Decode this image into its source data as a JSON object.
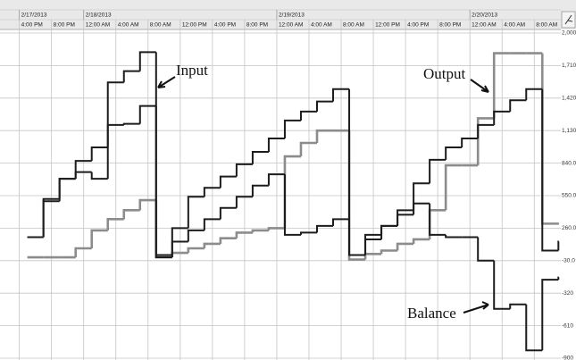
{
  "chart_data": {
    "type": "line",
    "drawstyle": "steps-post",
    "grid": true,
    "x": [
      1,
      3,
      5,
      7,
      9,
      11,
      13,
      15,
      17,
      19,
      21,
      23,
      25,
      27,
      29,
      31,
      33,
      35,
      37,
      39,
      41,
      43,
      45,
      47,
      49,
      51,
      53,
      55,
      57,
      59,
      61,
      63,
      65,
      67
    ],
    "xlim": [
      -2.4,
      67.3
    ],
    "xticks": [
      {
        "value": 0,
        "label": "4:00 PM"
      },
      {
        "value": 4,
        "label": "8:00 PM"
      },
      {
        "value": 8,
        "label": "12:00 AM"
      },
      {
        "value": 12,
        "label": "4:00 AM"
      },
      {
        "value": 16,
        "label": "8:00 AM"
      },
      {
        "value": 20,
        "label": "12:00 PM"
      },
      {
        "value": 24,
        "label": "4:00 PM"
      },
      {
        "value": 28,
        "label": "8:00 PM"
      },
      {
        "value": 32,
        "label": "12:00 AM"
      },
      {
        "value": 36,
        "label": "4:00 AM"
      },
      {
        "value": 40,
        "label": "8:00 AM"
      },
      {
        "value": 44,
        "label": "12:00 PM"
      },
      {
        "value": 48,
        "label": "4:00 PM"
      },
      {
        "value": 52,
        "label": "8:00 PM"
      },
      {
        "value": 56,
        "label": "12:00 AM"
      },
      {
        "value": 60,
        "label": "4:00 AM"
      },
      {
        "value": 64,
        "label": "8:00 AM"
      }
    ],
    "date_ticks": [
      {
        "value": 0,
        "label": "2/17/2013"
      },
      {
        "value": 8,
        "label": "2/18/2013"
      },
      {
        "value": 32,
        "label": "2/19/2013"
      },
      {
        "value": 56,
        "label": "2/20/2013"
      }
    ],
    "ylim": [
      -900,
      2000
    ],
    "yticks": [
      {
        "value": 2000,
        "label": "2,000"
      },
      {
        "value": 1710,
        "label": "1,710"
      },
      {
        "value": 1420,
        "label": "1,420"
      },
      {
        "value": 1130,
        "label": "1,130"
      },
      {
        "value": 840,
        "label": "840.0"
      },
      {
        "value": 550,
        "label": "550.0"
      },
      {
        "value": 260,
        "label": "260.0"
      },
      {
        "value": -30,
        "label": "-30.0"
      },
      -320,
      -610,
      -900
    ],
    "series": [
      {
        "name": "Input",
        "color": "#1c1c1c",
        "width": 2,
        "values": [
          180,
          520,
          700,
          860,
          980,
          1560,
          1660,
          1830,
          20,
          260,
          540,
          620,
          720,
          830,
          940,
          1060,
          1220,
          1300,
          1390,
          1500,
          20,
          160,
          280,
          420,
          660,
          870,
          980,
          1060,
          1180,
          1300,
          1400,
          1500,
          60,
          140
        ]
      },
      {
        "name": "Output",
        "color": "#8c8c8c",
        "width": 2.6,
        "values": [
          0,
          0,
          0,
          80,
          240,
          340,
          420,
          510,
          0,
          40,
          80,
          120,
          170,
          220,
          240,
          260,
          900,
          1020,
          1130,
          1130,
          -20,
          30,
          60,
          120,
          160,
          420,
          820,
          820,
          1240,
          1820,
          1820,
          1820,
          300,
          300
        ]
      },
      {
        "name": "Balance",
        "color": "#1c1c1c",
        "width": 2,
        "values": [
          180,
          500,
          700,
          760,
          700,
          1180,
          1190,
          1350,
          0,
          140,
          240,
          340,
          440,
          540,
          640,
          740,
          200,
          220,
          280,
          340,
          20,
          200,
          280,
          380,
          480,
          200,
          180,
          180,
          -30,
          -460,
          -420,
          -830,
          -200,
          -180
        ]
      }
    ],
    "annotations": [
      {
        "text": "Input"
      },
      {
        "text": "Output"
      },
      {
        "text": "Balance"
      }
    ]
  }
}
